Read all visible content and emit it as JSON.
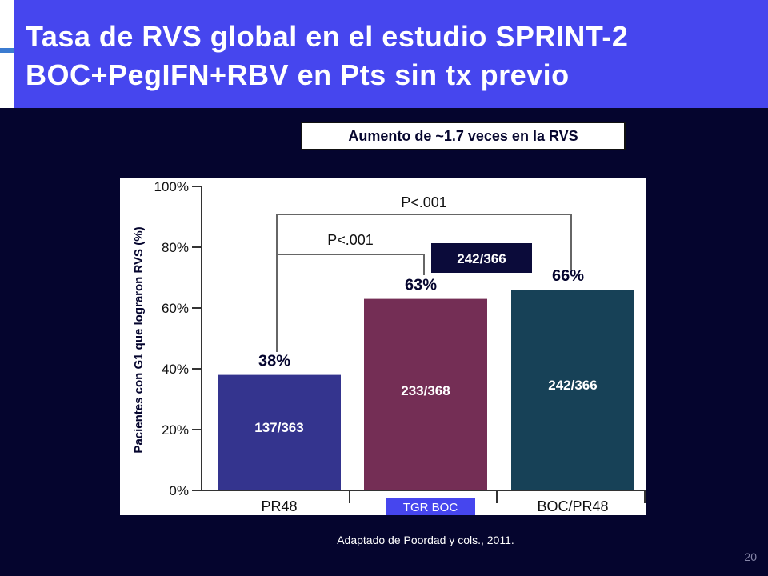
{
  "slide": {
    "title": "Tasa de RVS global en el estudio SPRINT-2 BOC+PegIFN+RBV en Pts sin tx previo",
    "callout": "Aumento de ~1.7 veces en la RVS",
    "footnote": "Adaptado de Poordad y cols., 2011.",
    "page_number": "20"
  },
  "colors": {
    "background": "#05052e",
    "title_bar": "#4646ee",
    "bar_pr48": "#34348e",
    "bar_tgr_boc": "#742e55",
    "bar_boc_pr48": "#174157",
    "label_box": "#0b0b3a",
    "tgr_tag": "#4646ee"
  },
  "chart_data": {
    "type": "bar",
    "ylabel": "Pacientes con G1 que lograron RVS (%)",
    "ylim": [
      0,
      100
    ],
    "yticks": [
      "0%",
      "20%",
      "40%",
      "60%",
      "80%",
      "100%"
    ],
    "categories": [
      "PR48",
      "TGR BOC",
      "BOC/PR48"
    ],
    "values": [
      38,
      63,
      66
    ],
    "value_labels": [
      "38%",
      "63%",
      "66%"
    ],
    "inner_labels": [
      "137/363",
      "233/368",
      "242/366"
    ],
    "box_label": "242/366",
    "comparisons": [
      {
        "label": "P<.001",
        "from": "PR48",
        "to": "BOC/PR48"
      },
      {
        "label": "P<.001",
        "from": "PR48",
        "to": "TGR BOC"
      }
    ],
    "grid": false
  }
}
